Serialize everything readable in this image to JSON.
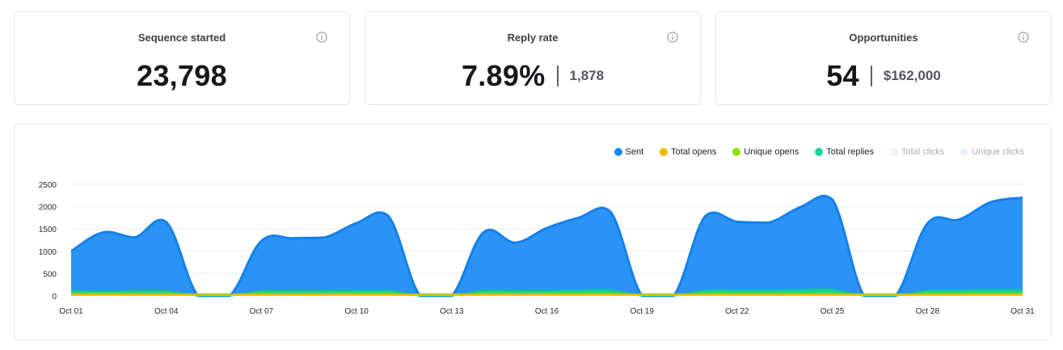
{
  "stats": {
    "sequence": {
      "title": "Sequence started",
      "value": "23,798"
    },
    "reply": {
      "title": "Reply rate",
      "value": "7.89%",
      "secondary": "1,878"
    },
    "opportunities": {
      "title": "Opportunities",
      "value": "54",
      "secondary": "$162,000"
    }
  },
  "legend": [
    {
      "label": "Sent",
      "color": "#1a86f0",
      "disabled": false
    },
    {
      "label": "Total opens",
      "color": "#f5b700",
      "disabled": false
    },
    {
      "label": "Unique opens",
      "color": "#8fe000",
      "disabled": false
    },
    {
      "label": "Total replies",
      "color": "#13d49a",
      "disabled": false
    },
    {
      "label": "Total clicks",
      "color": "#edf3fa",
      "disabled": true
    },
    {
      "label": "Unique clicks",
      "color": "#edf3fa",
      "disabled": true
    }
  ],
  "chart_data": {
    "type": "area",
    "x": [
      "Oct 01",
      "Oct 02",
      "Oct 03",
      "Oct 04",
      "Oct 05",
      "Oct 06",
      "Oct 07",
      "Oct 08",
      "Oct 09",
      "Oct 10",
      "Oct 11",
      "Oct 12",
      "Oct 13",
      "Oct 14",
      "Oct 15",
      "Oct 16",
      "Oct 17",
      "Oct 18",
      "Oct 19",
      "Oct 20",
      "Oct 21",
      "Oct 22",
      "Oct 23",
      "Oct 24",
      "Oct 25",
      "Oct 26",
      "Oct 27",
      "Oct 28",
      "Oct 29",
      "Oct 30",
      "Oct 31"
    ],
    "x_tick_labels": [
      "Oct 01",
      "Oct 04",
      "Oct 07",
      "Oct 10",
      "Oct 13",
      "Oct 16",
      "Oct 19",
      "Oct 22",
      "Oct 25",
      "Oct 28",
      "Oct 31"
    ],
    "y_ticks": [
      0,
      500,
      1000,
      1500,
      2000,
      2500
    ],
    "ylim": [
      0,
      2500
    ],
    "grid": true,
    "legend_position": "top-right",
    "series": [
      {
        "name": "Sent",
        "color": "#2b93f5",
        "stroke": "#1282ec",
        "values": [
          1000,
          1420,
          1310,
          1650,
          0,
          0,
          1230,
          1290,
          1310,
          1630,
          1790,
          0,
          0,
          1420,
          1190,
          1520,
          1750,
          1890,
          0,
          0,
          1790,
          1660,
          1640,
          1990,
          2160,
          0,
          0,
          1620,
          1710,
          2100,
          2200
        ]
      },
      {
        "name": "Total replies",
        "color": "#13d49a",
        "stroke": "#0fc48d",
        "values": [
          110,
          105,
          110,
          110,
          0,
          0,
          110,
          112,
          115,
          125,
          125,
          0,
          0,
          120,
          115,
          122,
          130,
          135,
          0,
          0,
          125,
          130,
          130,
          140,
          145,
          0,
          0,
          120,
          130,
          140,
          140
        ]
      },
      {
        "name": "Unique opens",
        "color": "#8fe000",
        "stroke": "#86d400",
        "values": [
          55,
          55,
          55,
          55,
          40,
          40,
          55,
          55,
          55,
          55,
          55,
          40,
          40,
          55,
          55,
          55,
          55,
          55,
          40,
          40,
          55,
          55,
          55,
          55,
          55,
          40,
          40,
          55,
          55,
          55,
          55
        ]
      },
      {
        "name": "Total opens",
        "color": "#f5c400",
        "stroke": "#e8b700",
        "values": [
          35,
          35,
          35,
          35,
          25,
          25,
          35,
          35,
          35,
          35,
          35,
          25,
          25,
          35,
          35,
          35,
          35,
          35,
          25,
          25,
          35,
          35,
          35,
          35,
          35,
          25,
          25,
          35,
          35,
          35,
          35
        ]
      }
    ]
  }
}
